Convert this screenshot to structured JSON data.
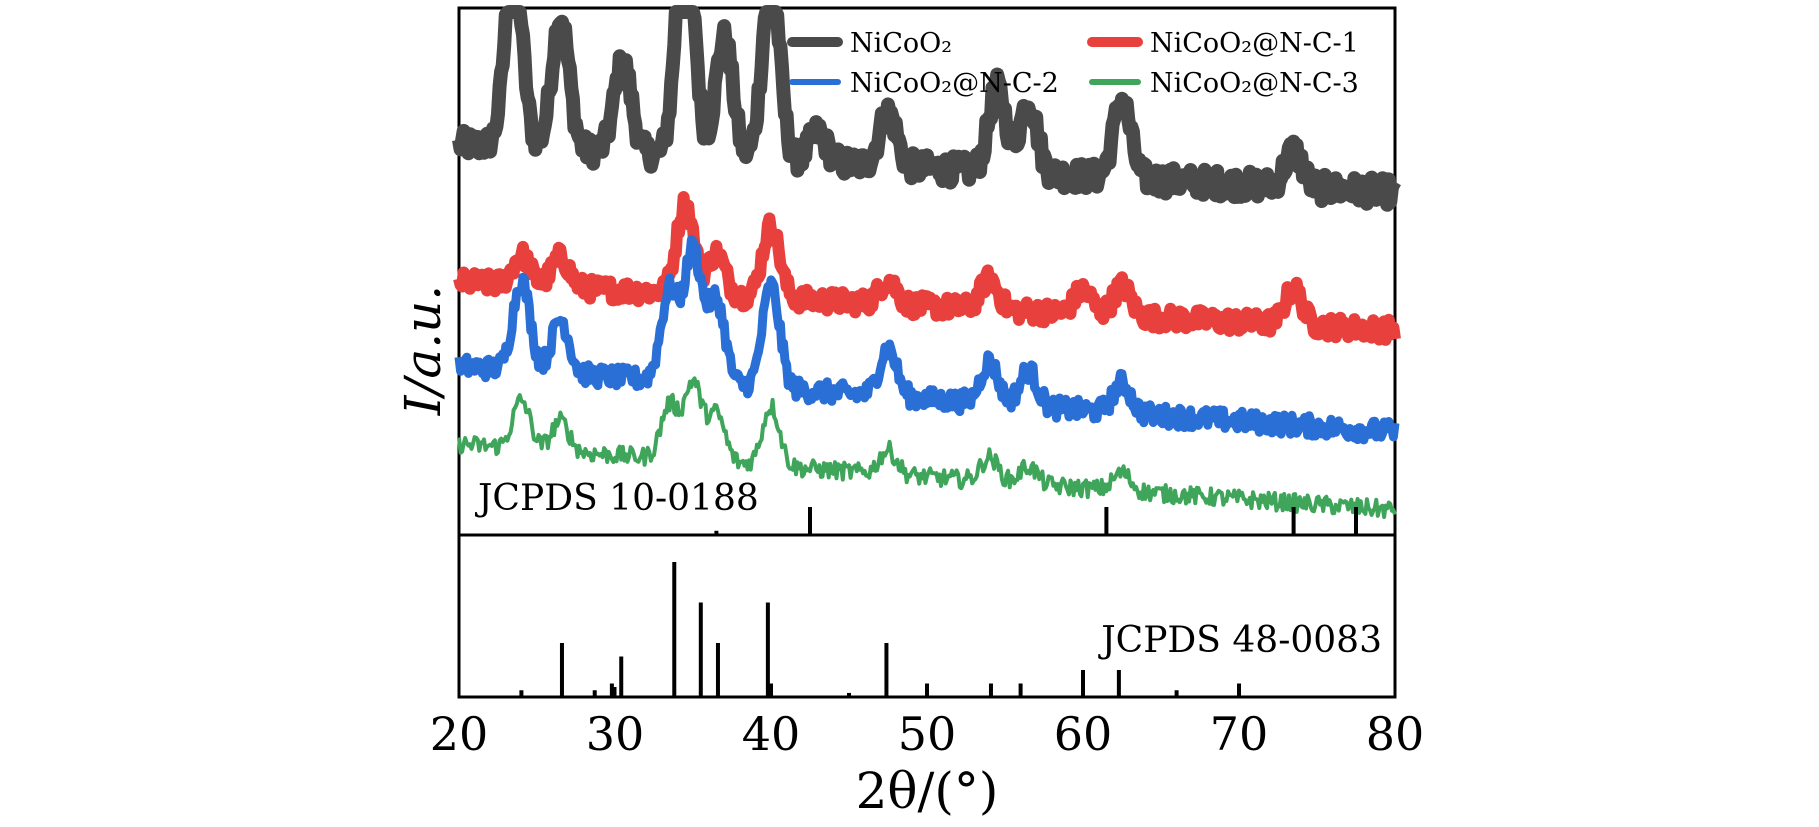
{
  "chart_data": {
    "type": "line",
    "xlabel": "2θ/(°)",
    "ylabel": "I/a.u.",
    "xlim": [
      20,
      80
    ],
    "x_ticks": [
      "20",
      "30",
      "40",
      "50",
      "60",
      "70",
      "80"
    ],
    "legend": {
      "placement": "top-right",
      "columns": 2
    },
    "series": [
      {
        "name": "NiCoO₂",
        "color": "#4a4a4a",
        "baseline_start": 0.82,
        "baseline_end": 0.66,
        "peaks": [
          {
            "x": 23.5,
            "h": 0.62
          },
          {
            "x": 26.5,
            "h": 0.44
          },
          {
            "x": 30.5,
            "h": 0.3
          },
          {
            "x": 34.5,
            "h": 0.86
          },
          {
            "x": 37.0,
            "h": 0.4
          },
          {
            "x": 40.0,
            "h": 0.62
          },
          {
            "x": 43.0,
            "h": 0.1
          },
          {
            "x": 47.5,
            "h": 0.18
          },
          {
            "x": 54.5,
            "h": 0.28
          },
          {
            "x": 56.5,
            "h": 0.24
          },
          {
            "x": 62.5,
            "h": 0.26
          },
          {
            "x": 73.5,
            "h": 0.12
          }
        ]
      },
      {
        "name": "NiCoO₂@N-C-1",
        "color": "#e8403c",
        "baseline_start": 0.36,
        "baseline_end": 0.2,
        "peaks": [
          {
            "x": 24.0,
            "h": 0.1
          },
          {
            "x": 26.5,
            "h": 0.1
          },
          {
            "x": 34.5,
            "h": 0.3
          },
          {
            "x": 36.5,
            "h": 0.14
          },
          {
            "x": 40.0,
            "h": 0.24
          },
          {
            "x": 47.5,
            "h": 0.08
          },
          {
            "x": 54.0,
            "h": 0.1
          },
          {
            "x": 60.0,
            "h": 0.08
          },
          {
            "x": 62.5,
            "h": 0.1
          },
          {
            "x": 73.5,
            "h": 0.12
          }
        ]
      },
      {
        "name": "NiCoO₂@N-C-2",
        "color": "#2a6fd6",
        "baseline_start": 0.08,
        "baseline_end": -0.14,
        "peaks": [
          {
            "x": 24.0,
            "h": 0.3
          },
          {
            "x": 26.5,
            "h": 0.18
          },
          {
            "x": 33.5,
            "h": 0.3
          },
          {
            "x": 35.0,
            "h": 0.44
          },
          {
            "x": 36.5,
            "h": 0.28
          },
          {
            "x": 40.0,
            "h": 0.34
          },
          {
            "x": 47.5,
            "h": 0.16
          },
          {
            "x": 54.0,
            "h": 0.14
          },
          {
            "x": 56.5,
            "h": 0.12
          },
          {
            "x": 62.5,
            "h": 0.1
          }
        ]
      },
      {
        "name": "NiCoO₂@N-C-3",
        "color": "#3fa55a",
        "baseline_start": -0.18,
        "baseline_end": -0.4,
        "peaks": [
          {
            "x": 24.0,
            "h": 0.16
          },
          {
            "x": 26.5,
            "h": 0.1
          },
          {
            "x": 33.5,
            "h": 0.18
          },
          {
            "x": 35.0,
            "h": 0.26
          },
          {
            "x": 36.5,
            "h": 0.16
          },
          {
            "x": 40.0,
            "h": 0.2
          },
          {
            "x": 47.5,
            "h": 0.08
          },
          {
            "x": 54.0,
            "h": 0.08
          },
          {
            "x": 56.5,
            "h": 0.06
          },
          {
            "x": 62.5,
            "h": 0.06
          }
        ]
      }
    ],
    "references": [
      {
        "label": "JCPDS 10-0188",
        "lines": [
          {
            "x": 36.5,
            "h": 0.15
          },
          {
            "x": 42.5,
            "h": 1.0
          },
          {
            "x": 61.5,
            "h": 1.0
          },
          {
            "x": 73.5,
            "h": 1.0
          },
          {
            "x": 77.5,
            "h": 1.0
          }
        ]
      },
      {
        "label": "JCPDS 48-0083",
        "lines": [
          {
            "x": 24.0,
            "h": 0.05
          },
          {
            "x": 26.6,
            "h": 0.4
          },
          {
            "x": 28.7,
            "h": 0.05
          },
          {
            "x": 29.8,
            "h": 0.1
          },
          {
            "x": 30.4,
            "h": 0.3
          },
          {
            "x": 33.8,
            "h": 1.0
          },
          {
            "x": 35.5,
            "h": 0.7
          },
          {
            "x": 36.6,
            "h": 0.4
          },
          {
            "x": 39.8,
            "h": 0.7
          },
          {
            "x": 40.0,
            "h": 0.1
          },
          {
            "x": 45.0,
            "h": 0.03
          },
          {
            "x": 47.4,
            "h": 0.4
          },
          {
            "x": 50.0,
            "h": 0.1
          },
          {
            "x": 54.1,
            "h": 0.1
          },
          {
            "x": 56.0,
            "h": 0.1
          },
          {
            "x": 60.0,
            "h": 0.2
          },
          {
            "x": 62.3,
            "h": 0.2
          },
          {
            "x": 66.0,
            "h": 0.05
          },
          {
            "x": 70.0,
            "h": 0.1
          }
        ]
      }
    ]
  }
}
